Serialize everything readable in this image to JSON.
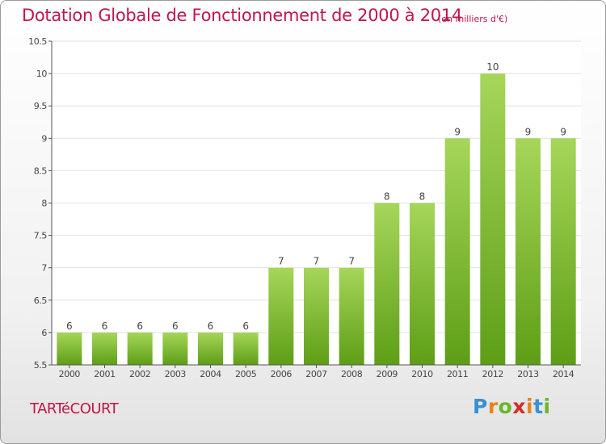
{
  "title": "Dotation Globale de Fonctionnement de 2000 à 2014",
  "unit_note": "(en milliers d'€)",
  "town": "TARTéCOURT",
  "logo": {
    "text": "Proxiti",
    "letter_colors": [
      "#3a8fd6",
      "#e8821e",
      "#6ab62a",
      "#d12a2a",
      "#e8821e",
      "#3a8fd6",
      "#6ab62a"
    ]
  },
  "colors": {
    "title": "#c0164b",
    "bar_top": "#a6d65a",
    "bar_bottom": "#5e9e16",
    "grid": "#e2e2e2",
    "axis": "#555555"
  },
  "chart_data": {
    "type": "bar",
    "title": "Dotation Globale de Fonctionnement de 2000 à 2014",
    "xlabel": "",
    "ylabel": "",
    "categories": [
      "2000",
      "2001",
      "2002",
      "2003",
      "2004",
      "2005",
      "2006",
      "2007",
      "2008",
      "2009",
      "2010",
      "2011",
      "2012",
      "2013",
      "2014"
    ],
    "values": [
      6,
      6,
      6,
      6,
      6,
      6,
      7,
      7,
      7,
      8,
      8,
      9,
      10,
      9,
      9
    ],
    "labels": [
      "6",
      "6",
      "6",
      "6",
      "6",
      "6",
      "7",
      "7",
      "7",
      "8",
      "8",
      "9",
      "10",
      "9",
      "9"
    ],
    "ylim": [
      5.5,
      10.5
    ],
    "yticks": [
      5.5,
      6,
      6.5,
      7,
      7.5,
      8,
      8.5,
      9,
      9.5,
      10,
      10.5
    ],
    "ytick_labels": [
      "5.5",
      "6",
      "6.5",
      "7",
      "7.5",
      "8",
      "8.5",
      "9",
      "9.5",
      "10",
      "10.5"
    ],
    "grid": true
  }
}
